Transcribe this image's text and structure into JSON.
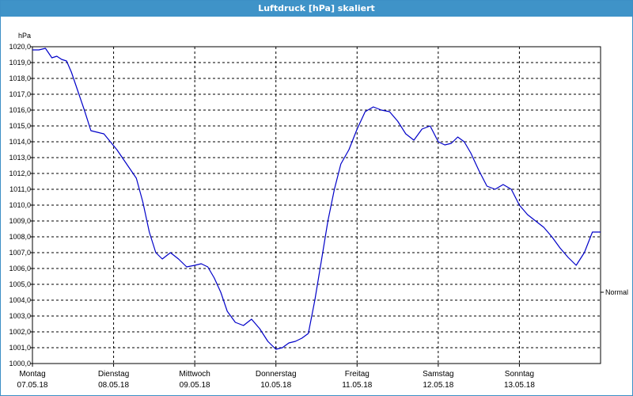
{
  "window": {
    "title": "Luftdruck [hPa] skaliert"
  },
  "chart_data": {
    "type": "line",
    "title": "Luftdruck [hPa] skaliert",
    "ylabel": "hPa",
    "ylim": [
      1000.0,
      1020.0
    ],
    "yticks": [
      "1000,0",
      "1001,0",
      "1002,0",
      "1003,0",
      "1004,0",
      "1005,0",
      "1006,0",
      "1007,0",
      "1008,0",
      "1009,0",
      "1010,0",
      "1011,0",
      "1012,0",
      "1013,0",
      "1014,0",
      "1015,0",
      "1016,0",
      "1017,0",
      "1018,0",
      "1019,0",
      "1020,0"
    ],
    "xlim": [
      0,
      7
    ],
    "xticks": [
      {
        "x": 0,
        "day": "Montag",
        "date": "07.05.18"
      },
      {
        "x": 1,
        "day": "Dienstag",
        "date": "08.05.18"
      },
      {
        "x": 2,
        "day": "Mittwoch",
        "date": "09.05.18"
      },
      {
        "x": 3,
        "day": "Donnerstag",
        "date": "10.05.18"
      },
      {
        "x": 4,
        "day": "Freitag",
        "date": "11.05.18"
      },
      {
        "x": 5,
        "day": "Samstag",
        "date": "12.05.18"
      },
      {
        "x": 6,
        "day": "Sonntag",
        "date": "13.05.18"
      }
    ],
    "grid": true,
    "line_color": "#0000c8",
    "reference_label": "Normal",
    "reference_value": 1004.5,
    "series": [
      {
        "x": [
          0.0,
          0.08,
          0.16,
          0.24,
          0.3,
          0.36,
          0.42,
          0.48,
          0.56,
          0.64,
          0.72,
          0.8,
          0.88,
          0.96,
          1.04,
          1.12,
          1.2,
          1.28,
          1.36,
          1.44,
          1.52,
          1.6,
          1.7,
          1.8,
          1.9,
          2.0,
          2.08,
          2.16,
          2.24,
          2.32,
          2.4,
          2.5,
          2.6,
          2.7,
          2.8,
          2.9,
          3.0,
          3.08,
          3.16,
          3.24,
          3.32,
          3.4,
          3.48,
          3.56,
          3.64,
          3.72,
          3.8,
          3.9,
          4.0,
          4.1,
          4.2,
          4.3,
          4.4,
          4.5,
          4.6,
          4.7,
          4.8,
          4.9,
          5.0,
          5.08,
          5.16,
          5.24,
          5.32,
          5.4,
          5.5,
          5.6,
          5.7,
          5.8,
          5.9,
          6.0,
          6.1,
          6.2,
          6.3,
          6.4,
          6.5,
          6.6,
          6.7,
          6.8,
          6.9,
          7.0
        ],
        "y": [
          1019.8,
          1019.8,
          1019.9,
          1019.3,
          1019.4,
          1019.2,
          1019.1,
          1018.4,
          1017.2,
          1016.0,
          1014.7,
          1014.6,
          1014.5,
          1014.0,
          1013.5,
          1012.9,
          1012.3,
          1011.7,
          1010.2,
          1008.3,
          1007.0,
          1006.6,
          1007.0,
          1006.6,
          1006.1,
          1006.2,
          1006.3,
          1006.1,
          1005.4,
          1004.5,
          1003.3,
          1002.6,
          1002.4,
          1002.8,
          1002.2,
          1001.4,
          1000.9,
          1001.0,
          1001.3,
          1001.4,
          1001.6,
          1001.9,
          1004.0,
          1006.5,
          1009.0,
          1011.0,
          1012.6,
          1013.5,
          1014.8,
          1015.9,
          1016.2,
          1016.0,
          1015.9,
          1015.3,
          1014.5,
          1014.1,
          1014.8,
          1015.0,
          1014.0,
          1013.8,
          1013.9,
          1014.3,
          1014.0,
          1013.3,
          1012.2,
          1011.2,
          1011.0,
          1011.3,
          1011.0,
          1010.0,
          1009.4,
          1009.0,
          1008.6,
          1008.0,
          1007.3,
          1006.7,
          1006.2,
          1007.0,
          1008.3,
          1008.3
        ]
      }
    ]
  }
}
